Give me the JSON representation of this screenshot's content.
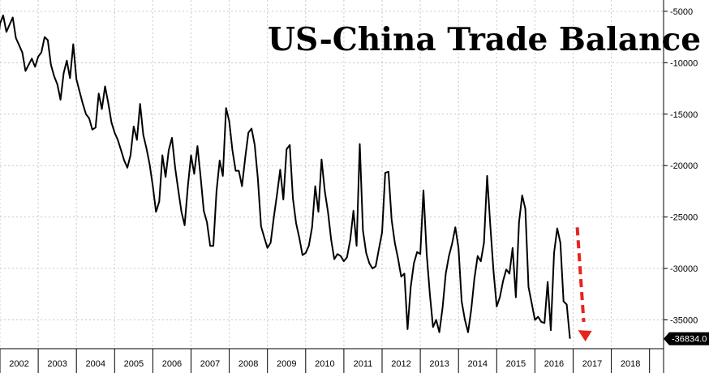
{
  "chart_data": {
    "type": "line",
    "title": "US-China Trade Balance",
    "xlabel": "",
    "ylabel": "",
    "ylim": [
      -37800,
      -3900
    ],
    "grid": true,
    "y_ticks": [
      -5000,
      -10000,
      -15000,
      -20000,
      -25000,
      -30000,
      -35000
    ],
    "x_ticks": [
      "2002",
      "2003",
      "2004",
      "2005",
      "2006",
      "2007",
      "2008",
      "2009",
      "2010",
      "2011",
      "2012",
      "2013",
      "2014",
      "2015",
      "2016",
      "2017",
      "2018"
    ],
    "last_value_label": "-36834.0",
    "colors": {
      "line": "#000000",
      "arrow": "#e8231f",
      "grid": "#c8c8c8"
    },
    "series": [
      {
        "x_start": "2001-10",
        "frequency": "monthly",
        "values": [
          -7000,
          -7800,
          -8800,
          -6200,
          -5400,
          -7000,
          -6300,
          -5600,
          -7600,
          -8300,
          -9000,
          -10800,
          -10200,
          -9600,
          -10400,
          -9400,
          -9000,
          -7500,
          -7800,
          -10200,
          -11300,
          -12100,
          -13600,
          -11000,
          -9800,
          -11500,
          -8200,
          -11600,
          -12800,
          -14000,
          -15000,
          -15400,
          -16500,
          -16300,
          -13000,
          -14500,
          -12300,
          -13900,
          -15800,
          -16800,
          -17500,
          -18500,
          -19500,
          -20200,
          -19000,
          -16200,
          -17500,
          -14000,
          -17000,
          -18300,
          -19900,
          -22000,
          -24500,
          -23500,
          -19000,
          -21100,
          -18500,
          -17300,
          -20200,
          -22400,
          -24500,
          -25800,
          -22000,
          -19000,
          -20800,
          -18100,
          -21100,
          -24400,
          -25500,
          -27800,
          -27800,
          -22500,
          -19500,
          -21000,
          -14400,
          -15700,
          -18500,
          -20500,
          -20500,
          -22000,
          -19300,
          -16800,
          -16400,
          -18000,
          -21300,
          -25900,
          -27000,
          -28000,
          -27500,
          -25000,
          -22800,
          -20400,
          -23300,
          -18400,
          -18000,
          -23200,
          -25600,
          -27000,
          -28700,
          -28500,
          -27800,
          -26000,
          -22000,
          -24500,
          -19400,
          -22500,
          -24500,
          -27200,
          -29100,
          -28600,
          -28800,
          -29300,
          -28900,
          -27200,
          -24400,
          -27800,
          -17900,
          -26300,
          -28500,
          -29500,
          -30000,
          -29800,
          -28100,
          -26500,
          -20700,
          -20600,
          -25300,
          -27500,
          -29000,
          -30800,
          -30500,
          -35900,
          -31800,
          -29500,
          -28400,
          -28600,
          -22400,
          -28600,
          -32500,
          -35700,
          -35000,
          -36200,
          -33800,
          -30500,
          -28800,
          -27600,
          -26000,
          -28000,
          -33200,
          -35000,
          -36200,
          -34000,
          -31000,
          -28800,
          -29300,
          -27500,
          -21000,
          -25800,
          -30300,
          -33700,
          -32800,
          -31200,
          -30100,
          -30500,
          -28000,
          -32800,
          -25500,
          -22900,
          -24200,
          -31800,
          -33400,
          -35000,
          -34700,
          -35200,
          -35300,
          -31300,
          -36000,
          -28500,
          -26100,
          -27500,
          -33200,
          -33500,
          -36834
        ]
      }
    ]
  }
}
